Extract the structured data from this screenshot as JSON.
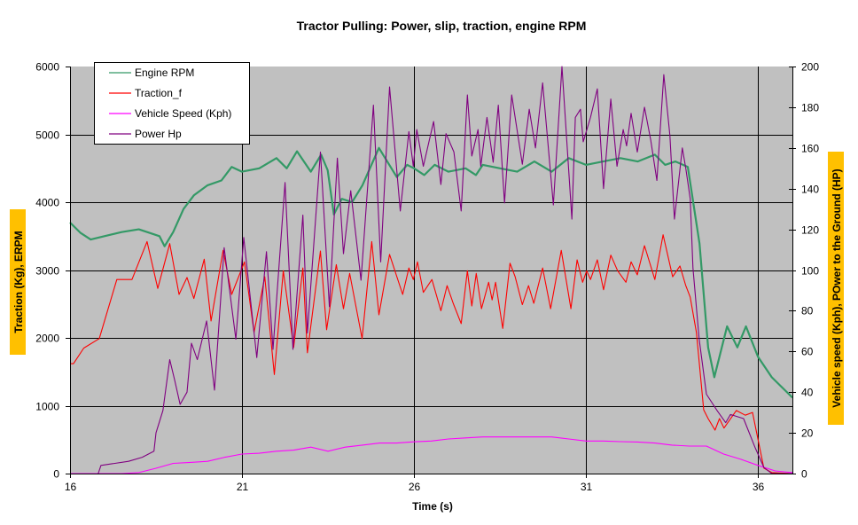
{
  "chart_data": {
    "type": "line",
    "title": "Tractor Pulling: Power, slip, traction, engine RPM",
    "xlabel": "Time (s)",
    "ylabel_left": "Traction (Kg), ERPM",
    "ylabel_right": "Vehicle speed (Kph),  POwer to the Ground (HP)",
    "xlim": [
      16,
      37
    ],
    "ylim_left": [
      0,
      6000
    ],
    "ylim_right": [
      0,
      200
    ],
    "xticks": [
      "16",
      "21",
      "26",
      "31",
      "36"
    ],
    "yticks_left": [
      "0",
      "1000",
      "2000",
      "3000",
      "4000",
      "5000",
      "6000"
    ],
    "yticks_right": [
      "0",
      "20",
      "40",
      "60",
      "80",
      "100",
      "120",
      "140",
      "160",
      "180",
      "200"
    ],
    "grid": true,
    "legend_position": "top-left",
    "colors": {
      "plot_bg": "#c0c0c0",
      "label_bg": "#ffc000"
    },
    "series": [
      {
        "name": "Engine RPM",
        "axis": "left",
        "color": "#339966",
        "points": [
          [
            16.0,
            3700
          ],
          [
            16.3,
            3550
          ],
          [
            16.6,
            3450
          ],
          [
            17.0,
            3500
          ],
          [
            17.5,
            3560
          ],
          [
            18.0,
            3600
          ],
          [
            18.3,
            3550
          ],
          [
            18.6,
            3500
          ],
          [
            18.75,
            3350
          ],
          [
            19.0,
            3560
          ],
          [
            19.3,
            3900
          ],
          [
            19.6,
            4100
          ],
          [
            20.0,
            4250
          ],
          [
            20.4,
            4320
          ],
          [
            20.7,
            4520
          ],
          [
            21.0,
            4450
          ],
          [
            21.5,
            4500
          ],
          [
            22.0,
            4650
          ],
          [
            22.3,
            4500
          ],
          [
            22.6,
            4750
          ],
          [
            23.0,
            4450
          ],
          [
            23.3,
            4700
          ],
          [
            23.49,
            4470
          ],
          [
            23.67,
            3820
          ],
          [
            23.9,
            4050
          ],
          [
            24.2,
            4000
          ],
          [
            24.5,
            4250
          ],
          [
            24.98,
            4800
          ],
          [
            25.5,
            4370
          ],
          [
            25.8,
            4550
          ],
          [
            26.0,
            4500
          ],
          [
            26.3,
            4400
          ],
          [
            26.6,
            4550
          ],
          [
            27.0,
            4450
          ],
          [
            27.5,
            4500
          ],
          [
            27.8,
            4400
          ],
          [
            28.0,
            4550
          ],
          [
            28.5,
            4500
          ],
          [
            29.0,
            4450
          ],
          [
            29.5,
            4600
          ],
          [
            30.0,
            4450
          ],
          [
            30.5,
            4650
          ],
          [
            31.0,
            4550
          ],
          [
            31.5,
            4600
          ],
          [
            32.0,
            4650
          ],
          [
            32.5,
            4600
          ],
          [
            33.0,
            4700
          ],
          [
            33.3,
            4550
          ],
          [
            33.6,
            4600
          ],
          [
            33.96,
            4520
          ],
          [
            34.3,
            3390
          ],
          [
            34.55,
            1860
          ],
          [
            34.73,
            1420
          ],
          [
            35.1,
            2170
          ],
          [
            35.4,
            1860
          ],
          [
            35.65,
            2170
          ],
          [
            36.0,
            1720
          ],
          [
            36.4,
            1420
          ],
          [
            37.0,
            1120
          ]
        ]
      },
      {
        "name": "Traction_f",
        "axis": "left",
        "color": "#ff0000",
        "points": [
          [
            16.0,
            1620
          ],
          [
            16.1,
            1620
          ],
          [
            16.4,
            1850
          ],
          [
            16.85,
            1990
          ],
          [
            17.36,
            2860
          ],
          [
            17.8,
            2860
          ],
          [
            18.24,
            3420
          ],
          [
            18.55,
            2730
          ],
          [
            18.9,
            3390
          ],
          [
            19.17,
            2640
          ],
          [
            19.4,
            2890
          ],
          [
            19.6,
            2580
          ],
          [
            19.9,
            3160
          ],
          [
            20.1,
            2250
          ],
          [
            20.45,
            3290
          ],
          [
            20.7,
            2640
          ],
          [
            21.07,
            3120
          ],
          [
            21.35,
            2080
          ],
          [
            21.66,
            2900
          ],
          [
            21.94,
            1460
          ],
          [
            22.2,
            2990
          ],
          [
            22.5,
            1860
          ],
          [
            22.77,
            3030
          ],
          [
            22.9,
            1780
          ],
          [
            23.28,
            3280
          ],
          [
            23.46,
            2120
          ],
          [
            23.74,
            3080
          ],
          [
            23.95,
            2430
          ],
          [
            24.13,
            2950
          ],
          [
            24.49,
            1990
          ],
          [
            24.77,
            3420
          ],
          [
            24.98,
            2340
          ],
          [
            25.29,
            3230
          ],
          [
            25.67,
            2640
          ],
          [
            25.85,
            3030
          ],
          [
            25.98,
            2860
          ],
          [
            26.1,
            3120
          ],
          [
            26.27,
            2670
          ],
          [
            26.52,
            2860
          ],
          [
            26.78,
            2400
          ],
          [
            26.96,
            2770
          ],
          [
            27.14,
            2510
          ],
          [
            27.37,
            2210
          ],
          [
            27.55,
            2990
          ],
          [
            27.68,
            2470
          ],
          [
            27.81,
            2950
          ],
          [
            27.96,
            2430
          ],
          [
            28.17,
            2820
          ],
          [
            28.27,
            2560
          ],
          [
            28.37,
            2820
          ],
          [
            28.58,
            2140
          ],
          [
            28.79,
            3100
          ],
          [
            28.94,
            2900
          ],
          [
            29.15,
            2490
          ],
          [
            29.33,
            2770
          ],
          [
            29.48,
            2510
          ],
          [
            29.74,
            3030
          ],
          [
            29.97,
            2430
          ],
          [
            30.28,
            3290
          ],
          [
            30.56,
            2430
          ],
          [
            30.74,
            3150
          ],
          [
            30.9,
            2820
          ],
          [
            31.02,
            2990
          ],
          [
            31.13,
            2860
          ],
          [
            31.33,
            3150
          ],
          [
            31.51,
            2710
          ],
          [
            31.72,
            3220
          ],
          [
            31.92,
            2990
          ],
          [
            32.16,
            2820
          ],
          [
            32.31,
            3120
          ],
          [
            32.49,
            2930
          ],
          [
            32.7,
            3360
          ],
          [
            33.0,
            2860
          ],
          [
            33.24,
            3520
          ],
          [
            33.52,
            2900
          ],
          [
            33.73,
            3060
          ],
          [
            33.9,
            2770
          ],
          [
            34.03,
            2600
          ],
          [
            34.21,
            2080
          ],
          [
            34.42,
            940
          ],
          [
            34.55,
            810
          ],
          [
            34.75,
            640
          ],
          [
            34.88,
            810
          ],
          [
            35.01,
            670
          ],
          [
            35.37,
            930
          ],
          [
            35.63,
            860
          ],
          [
            35.84,
            900
          ],
          [
            36.17,
            80
          ],
          [
            36.4,
            15
          ],
          [
            37.0,
            0
          ]
        ]
      },
      {
        "name": "Vehicle Speed (Kph)",
        "axis": "right",
        "color": "#ff00ff",
        "points": [
          [
            16.0,
            0
          ],
          [
            17.5,
            0
          ],
          [
            18.0,
            0.5
          ],
          [
            18.5,
            2.6
          ],
          [
            19.0,
            5
          ],
          [
            19.5,
            5.5
          ],
          [
            20.0,
            6
          ],
          [
            20.5,
            8
          ],
          [
            21.0,
            9.6
          ],
          [
            21.5,
            10
          ],
          [
            22.0,
            11
          ],
          [
            22.5,
            11.5
          ],
          [
            23.0,
            13
          ],
          [
            23.5,
            11
          ],
          [
            24.0,
            13
          ],
          [
            24.5,
            14
          ],
          [
            25.0,
            15
          ],
          [
            25.5,
            15
          ],
          [
            26.0,
            15.6
          ],
          [
            26.5,
            16
          ],
          [
            27.0,
            17
          ],
          [
            27.5,
            17.5
          ],
          [
            28.0,
            18
          ],
          [
            28.5,
            18
          ],
          [
            29.0,
            18
          ],
          [
            29.5,
            18
          ],
          [
            30.0,
            18
          ],
          [
            30.5,
            17
          ],
          [
            31.0,
            16
          ],
          [
            31.5,
            16
          ],
          [
            32.0,
            15.7
          ],
          [
            32.5,
            15.5
          ],
          [
            33.0,
            15
          ],
          [
            33.5,
            14
          ],
          [
            34.0,
            13.5
          ],
          [
            34.5,
            13.5
          ],
          [
            35.0,
            9.6
          ],
          [
            35.5,
            7
          ],
          [
            36.0,
            4
          ],
          [
            36.5,
            1.3
          ],
          [
            37.0,
            0.5
          ]
        ]
      },
      {
        "name": "Power Hp",
        "axis": "right",
        "color": "#800080",
        "points": [
          [
            16.82,
            0
          ],
          [
            16.9,
            4
          ],
          [
            17.3,
            5
          ],
          [
            17.7,
            6
          ],
          [
            18.1,
            8
          ],
          [
            18.44,
            11
          ],
          [
            18.5,
            20
          ],
          [
            18.7,
            31
          ],
          [
            18.9,
            56
          ],
          [
            19.04,
            46
          ],
          [
            19.2,
            34
          ],
          [
            19.4,
            40
          ],
          [
            19.53,
            64
          ],
          [
            19.7,
            56
          ],
          [
            19.97,
            75
          ],
          [
            20.2,
            41
          ],
          [
            20.48,
            111
          ],
          [
            20.82,
            66
          ],
          [
            21.05,
            116
          ],
          [
            21.43,
            57
          ],
          [
            21.71,
            109
          ],
          [
            21.9,
            61
          ],
          [
            22.25,
            143
          ],
          [
            22.48,
            61
          ],
          [
            22.77,
            127
          ],
          [
            22.9,
            69
          ],
          [
            23.28,
            158
          ],
          [
            23.54,
            82
          ],
          [
            23.77,
            155
          ],
          [
            23.95,
            108
          ],
          [
            24.16,
            139
          ],
          [
            24.46,
            95
          ],
          [
            24.82,
            181
          ],
          [
            25.03,
            104
          ],
          [
            25.29,
            190
          ],
          [
            25.6,
            129
          ],
          [
            25.85,
            168
          ],
          [
            25.98,
            151
          ],
          [
            26.08,
            169
          ],
          [
            26.27,
            151
          ],
          [
            26.57,
            173
          ],
          [
            26.78,
            142
          ],
          [
            26.93,
            167
          ],
          [
            27.16,
            158
          ],
          [
            27.37,
            129
          ],
          [
            27.55,
            186
          ],
          [
            27.68,
            156
          ],
          [
            27.86,
            169
          ],
          [
            27.94,
            151
          ],
          [
            28.12,
            175
          ],
          [
            28.3,
            153
          ],
          [
            28.45,
            181
          ],
          [
            28.63,
            133
          ],
          [
            28.84,
            186
          ],
          [
            29.15,
            152
          ],
          [
            29.35,
            179
          ],
          [
            29.53,
            160
          ],
          [
            29.74,
            192
          ],
          [
            30.05,
            132
          ],
          [
            30.3,
            200
          ],
          [
            30.59,
            125
          ],
          [
            30.69,
            175
          ],
          [
            30.84,
            179
          ],
          [
            30.92,
            163
          ],
          [
            31.13,
            175
          ],
          [
            31.33,
            189
          ],
          [
            31.51,
            140
          ],
          [
            31.72,
            184
          ],
          [
            31.9,
            151
          ],
          [
            32.08,
            169
          ],
          [
            32.18,
            161
          ],
          [
            32.31,
            177
          ],
          [
            32.49,
            158
          ],
          [
            32.7,
            180
          ],
          [
            32.88,
            164
          ],
          [
            33.06,
            144
          ],
          [
            33.26,
            196
          ],
          [
            33.44,
            166
          ],
          [
            33.57,
            125
          ],
          [
            33.8,
            160
          ],
          [
            33.9,
            150
          ],
          [
            34.03,
            135
          ],
          [
            34.11,
            101
          ],
          [
            34.29,
            66
          ],
          [
            34.5,
            39
          ],
          [
            34.81,
            31
          ],
          [
            35.06,
            25
          ],
          [
            35.2,
            29
          ],
          [
            35.58,
            27
          ],
          [
            35.91,
            13
          ],
          [
            36.17,
            3
          ],
          [
            36.4,
            0
          ],
          [
            37.0,
            0
          ]
        ]
      }
    ]
  }
}
